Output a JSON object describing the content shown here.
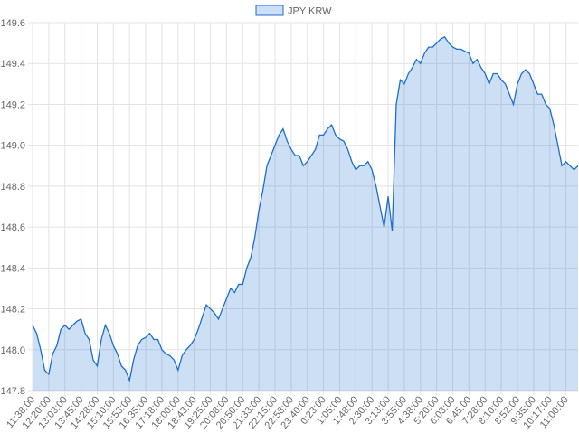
{
  "chart_data": {
    "type": "area",
    "legend": "top",
    "categories": [
      "11:38:00",
      null,
      null,
      null,
      "12:20:00",
      null,
      null,
      null,
      "13:03:00",
      null,
      null,
      null,
      "13:45:00",
      null,
      null,
      null,
      "14:28:00",
      null,
      null,
      null,
      "15:10:00",
      null,
      null,
      null,
      "15:53:00",
      null,
      null,
      null,
      "16:35:00",
      null,
      null,
      null,
      "17:18:00",
      null,
      null,
      null,
      "18:00:00",
      null,
      null,
      null,
      "18:43:00",
      null,
      null,
      null,
      "19:25:00",
      null,
      null,
      null,
      "20:08:00",
      null,
      null,
      null,
      "20:50:00",
      null,
      null,
      null,
      "21:33:00",
      null,
      null,
      null,
      "22:15:00",
      null,
      null,
      null,
      "22:58:00",
      null,
      null,
      null,
      "23:40:00",
      null,
      null,
      null,
      "0:23:00",
      null,
      null,
      null,
      "1:05:00",
      null,
      null,
      null,
      "1:48:00",
      null,
      null,
      null,
      "2:30:00",
      null,
      null,
      null,
      "3:13:00",
      null,
      null,
      null,
      "3:55:00",
      null,
      null,
      null,
      "4:38:00",
      null,
      null,
      null,
      "5:20:00",
      null,
      null,
      null,
      "6:03:00",
      null,
      null,
      null,
      "6:45:00",
      null,
      null,
      null,
      "7:28:00",
      null,
      null,
      null,
      "8:10:00",
      null,
      null,
      null,
      "8:52:00",
      null,
      null,
      null,
      "9:35:00",
      null,
      null,
      null,
      "10:17:00",
      null,
      null,
      null,
      "11:00:00",
      null,
      null,
      null
    ],
    "series": [
      {
        "name": "JPY KRW",
        "color": "#1c6fcb",
        "values": [
          148.12,
          148.08,
          148.0,
          147.9,
          147.88,
          147.98,
          148.02,
          148.1,
          148.12,
          148.1,
          148.12,
          148.14,
          148.15,
          148.08,
          148.05,
          147.95,
          147.92,
          148.05,
          148.12,
          148.08,
          148.02,
          147.98,
          147.92,
          147.9,
          147.85,
          147.95,
          148.02,
          148.05,
          148.06,
          148.08,
          148.05,
          148.05,
          148.0,
          147.98,
          147.97,
          147.95,
          147.9,
          147.97,
          148.0,
          148.02,
          148.05,
          148.1,
          148.16,
          148.22,
          148.2,
          148.18,
          148.15,
          148.2,
          148.25,
          148.3,
          148.28,
          148.32,
          148.32,
          148.4,
          148.45,
          148.55,
          148.68,
          148.78,
          148.9,
          148.95,
          149.0,
          149.05,
          149.08,
          149.02,
          148.98,
          148.95,
          148.95,
          148.9,
          148.92,
          148.95,
          148.98,
          149.05,
          149.05,
          149.08,
          149.1,
          149.05,
          149.03,
          149.02,
          148.98,
          148.92,
          148.88,
          148.9,
          148.9,
          148.92,
          148.88,
          148.8,
          148.7,
          148.6,
          148.75,
          148.58,
          149.2,
          149.32,
          149.3,
          149.35,
          149.38,
          149.42,
          149.4,
          149.45,
          149.48,
          149.48,
          149.5,
          149.52,
          149.53,
          149.5,
          149.48,
          149.47,
          149.47,
          149.46,
          149.45,
          149.4,
          149.42,
          149.38,
          149.35,
          149.3,
          149.35,
          149.35,
          149.32,
          149.3,
          149.25,
          149.2,
          149.3,
          149.35,
          149.37,
          149.35,
          149.3,
          149.25,
          149.25,
          149.2,
          149.18,
          149.1,
          149.0,
          148.9,
          148.92,
          148.9,
          148.88,
          148.9
        ]
      }
    ],
    "ylim": [
      147.8,
      149.6
    ],
    "yticks": [
      147.8,
      {
        "value": 148,
        "label": "148.0"
      },
      148.2,
      148.4,
      148.6,
      148.8,
      {
        "value": 149,
        "label": "149.0"
      },
      149.2,
      149.4,
      149.6
    ],
    "grid": true
  }
}
